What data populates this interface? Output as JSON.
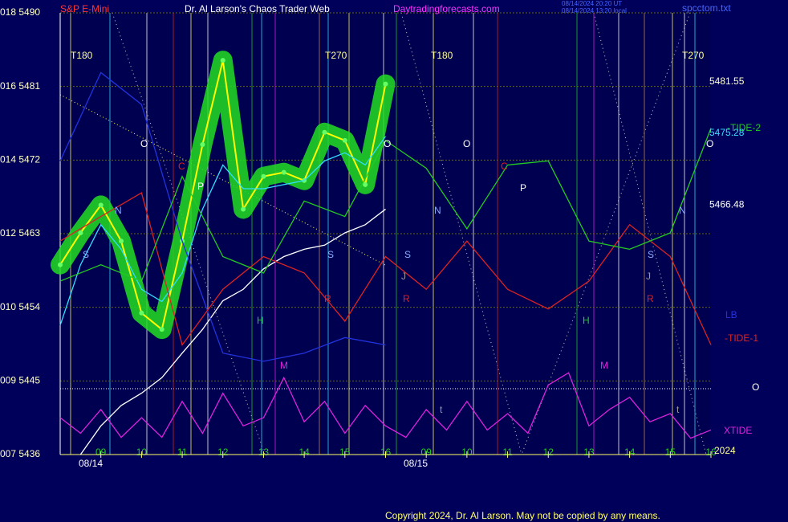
{
  "chart_data": {
    "type": "line",
    "symbol": "S&P E-Mini",
    "title": "Dr. Al Larson's Chaos Trader Web",
    "site": "Daytradingforecasts.com",
    "timestamp_ut": "08/14/2024 20:20 UT",
    "timestamp_local": "08/14/2024 13:20 local",
    "file": "spcctom.txt",
    "copyright": "Copyright 2024, Dr. Al Larson. May not be copied by any means.",
    "xlim": [
      0,
      16
    ],
    "xticks": [
      {
        "value": 1,
        "label": "09"
      },
      {
        "value": 2,
        "label": "10"
      },
      {
        "value": 3,
        "label": "11"
      },
      {
        "value": 4,
        "label": "12"
      },
      {
        "value": 5,
        "label": "13"
      },
      {
        "value": 6,
        "label": "14"
      },
      {
        "value": 7,
        "label": "15"
      },
      {
        "value": 8,
        "label": "16"
      },
      {
        "value": 9,
        "label": "09"
      },
      {
        "value": 10,
        "label": "10"
      },
      {
        "value": 11,
        "label": "11"
      },
      {
        "value": 12,
        "label": "12"
      },
      {
        "value": 13,
        "label": "13"
      },
      {
        "value": 14,
        "label": "14"
      },
      {
        "value": 15,
        "label": "15"
      },
      {
        "value": 16,
        "label": "16"
      }
    ],
    "dates": [
      "08/14",
      "08/15"
    ],
    "ylim": [
      5436,
      5490
    ],
    "yticks": [
      {
        "value": 5436,
        "label": "007 5436"
      },
      {
        "value": 5445,
        "label": "009 5445"
      },
      {
        "value": 5454,
        "label": "010 5454"
      },
      {
        "value": 5463,
        "label": "012 5463"
      },
      {
        "value": 5472,
        "label": "014 5472"
      },
      {
        "value": 5481,
        "label": "016 5481"
      },
      {
        "value": 5490,
        "label": "018 5490"
      }
    ],
    "grid": true,
    "price_labels": [
      5481.55,
      5475.28,
      5466.48
    ],
    "series": [
      {
        "color": "#ffff00",
        "band_color": "#22dd22",
        "x": [
          0,
          0.5,
          1,
          1.5,
          2,
          2.5,
          3,
          3.5,
          4,
          4.5,
          5,
          5.5,
          6,
          6.5,
          7,
          7.5,
          8
        ],
        "values": [
          5459.2,
          5463.1,
          5466.5,
          5462.1,
          5453.3,
          5451.3,
          5462.1,
          5473.9,
          5484.2,
          5466.0,
          5470.0,
          5470.5,
          5469.5,
          5475.4,
          5474.4,
          5469.0,
          5481.3
        ]
      },
      {
        "color": "#33ddff",
        "x": [
          0,
          0.5,
          1,
          1.5,
          2,
          2.5,
          3,
          3.5,
          4,
          4.5,
          5,
          5.5,
          6,
          6.5,
          7,
          7.5,
          8
        ],
        "values": [
          5451.8,
          5459.2,
          5464.1,
          5461.1,
          5456.2,
          5454.7,
          5458.2,
          5466.0,
          5471.4,
          5468.5,
          5468.5,
          5469.0,
          5469.5,
          5471.9,
          5472.9,
          5471.4,
          5474.9
        ]
      },
      {
        "color": "#ffffff",
        "x": [
          0,
          0.5,
          1,
          1.5,
          2,
          2.5,
          3,
          3.5,
          4,
          4.5,
          5,
          5.5,
          6,
          6.5,
          7,
          7.5,
          8
        ],
        "values": [
          null,
          5436.0,
          5439.5,
          5442.0,
          5443.5,
          5445.4,
          5448.4,
          5451.3,
          5454.8,
          5456.2,
          5458.7,
          5460.2,
          5461.1,
          5461.6,
          5463.1,
          5464.1,
          5466.0
        ]
      },
      {
        "name": "LB",
        "color": "#2233dd",
        "x": [
          0,
          1,
          2,
          3,
          4,
          5,
          6,
          7,
          8
        ],
        "values": [
          5471.9,
          5482.7,
          5478.8,
          5462.1,
          5448.4,
          5447.4,
          5448.4,
          5450.3,
          5449.4
        ]
      },
      {
        "name": "-TIDE-1",
        "color": "#dd2222",
        "x": [
          0,
          1,
          2,
          3,
          4,
          5,
          6,
          7,
          8,
          9,
          10,
          11,
          12,
          13,
          14,
          15,
          16
        ],
        "values": [
          5462.1,
          5465.1,
          5468.0,
          5449.4,
          5456.2,
          5460.2,
          5458.2,
          5452.3,
          5460.2,
          5456.2,
          5462.1,
          5456.2,
          5453.8,
          5457.2,
          5464.1,
          5460.2,
          5449.4
        ]
      },
      {
        "name": "-TIDE-2",
        "color": "#22cc22",
        "x": [
          0,
          1,
          2,
          3,
          4,
          5,
          6,
          7,
          8,
          9,
          10,
          11,
          12,
          13,
          14,
          15,
          16
        ],
        "values": [
          5457.2,
          5459.2,
          5457.2,
          5470.0,
          5460.2,
          5458.2,
          5467.0,
          5465.1,
          5474.4,
          5471.0,
          5463.6,
          5471.4,
          5471.9,
          5462.1,
          5461.1,
          5463.1,
          5475.9
        ]
      },
      {
        "name": "XTIDE",
        "color": "#dd22dd",
        "x": [
          0,
          0.5,
          1,
          1.5,
          2,
          2.5,
          3,
          3.5,
          4,
          4.5,
          5,
          5.5,
          6,
          6.5,
          7,
          7.5,
          8,
          8.5,
          9,
          9.5,
          10,
          10.5,
          11,
          11.5,
          12,
          12.5,
          13,
          13.5,
          14,
          14.5,
          15,
          15.5,
          16
        ],
        "values": [
          5440.5,
          5438.6,
          5441.5,
          5438.1,
          5440.5,
          5438.1,
          5442.5,
          5438.6,
          5443.5,
          5439.5,
          5440.5,
          5445.4,
          5440.0,
          5442.5,
          5438.6,
          5442.0,
          5439.5,
          5438.1,
          5441.5,
          5439.0,
          5442.5,
          5439.0,
          5441.0,
          5438.6,
          5444.5,
          5446.0,
          5439.5,
          5441.5,
          5443.0,
          5440.0,
          5441.0,
          5438.0,
          5439.0
        ]
      }
    ],
    "annotations": [
      "T180",
      "T270",
      "T180",
      "T270",
      "O",
      "O",
      "O",
      "O",
      "C",
      "C",
      "P",
      "P",
      "N",
      "N",
      "N",
      "S",
      "S",
      "S",
      "S",
      "J",
      "J",
      "R",
      "R",
      "R",
      "H",
      "H",
      "M",
      "M",
      "t",
      "t",
      "O",
      "2024"
    ]
  }
}
